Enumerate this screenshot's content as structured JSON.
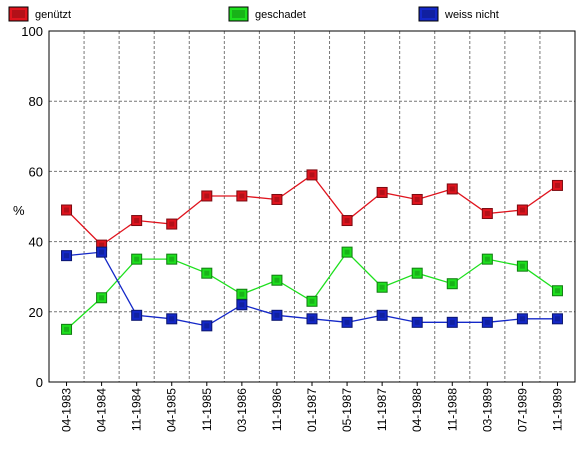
{
  "chart_data": {
    "type": "line",
    "categories": [
      "04-1983",
      "04-1984",
      "11-1984",
      "04-1985",
      "11-1985",
      "03-1986",
      "11-1986",
      "01-1987",
      "05-1987",
      "11-1987",
      "04-1988",
      "11-1988",
      "03-1989",
      "07-1989",
      "11-1989"
    ],
    "series": [
      {
        "name": "genützt",
        "color": "#e0141e",
        "values": [
          49,
          39,
          46,
          45,
          53,
          53,
          52,
          59,
          46,
          54,
          52,
          55,
          48,
          49,
          56
        ]
      },
      {
        "name": "geschadet",
        "color": "#1ee01e",
        "values": [
          15,
          24,
          35,
          35,
          31,
          25,
          29,
          23,
          37,
          27,
          31,
          28,
          35,
          33,
          26
        ]
      },
      {
        "name": "weiss nicht",
        "color": "#1428c8",
        "values": [
          36,
          37,
          19,
          18,
          16,
          22,
          19,
          18,
          17,
          19,
          17,
          17,
          17,
          18,
          18
        ]
      }
    ],
    "ylabel": "%",
    "ylim": [
      0,
      100
    ],
    "yticks": [
      0,
      20,
      40,
      60,
      80,
      100
    ],
    "grid": true,
    "legend_position": "top"
  }
}
